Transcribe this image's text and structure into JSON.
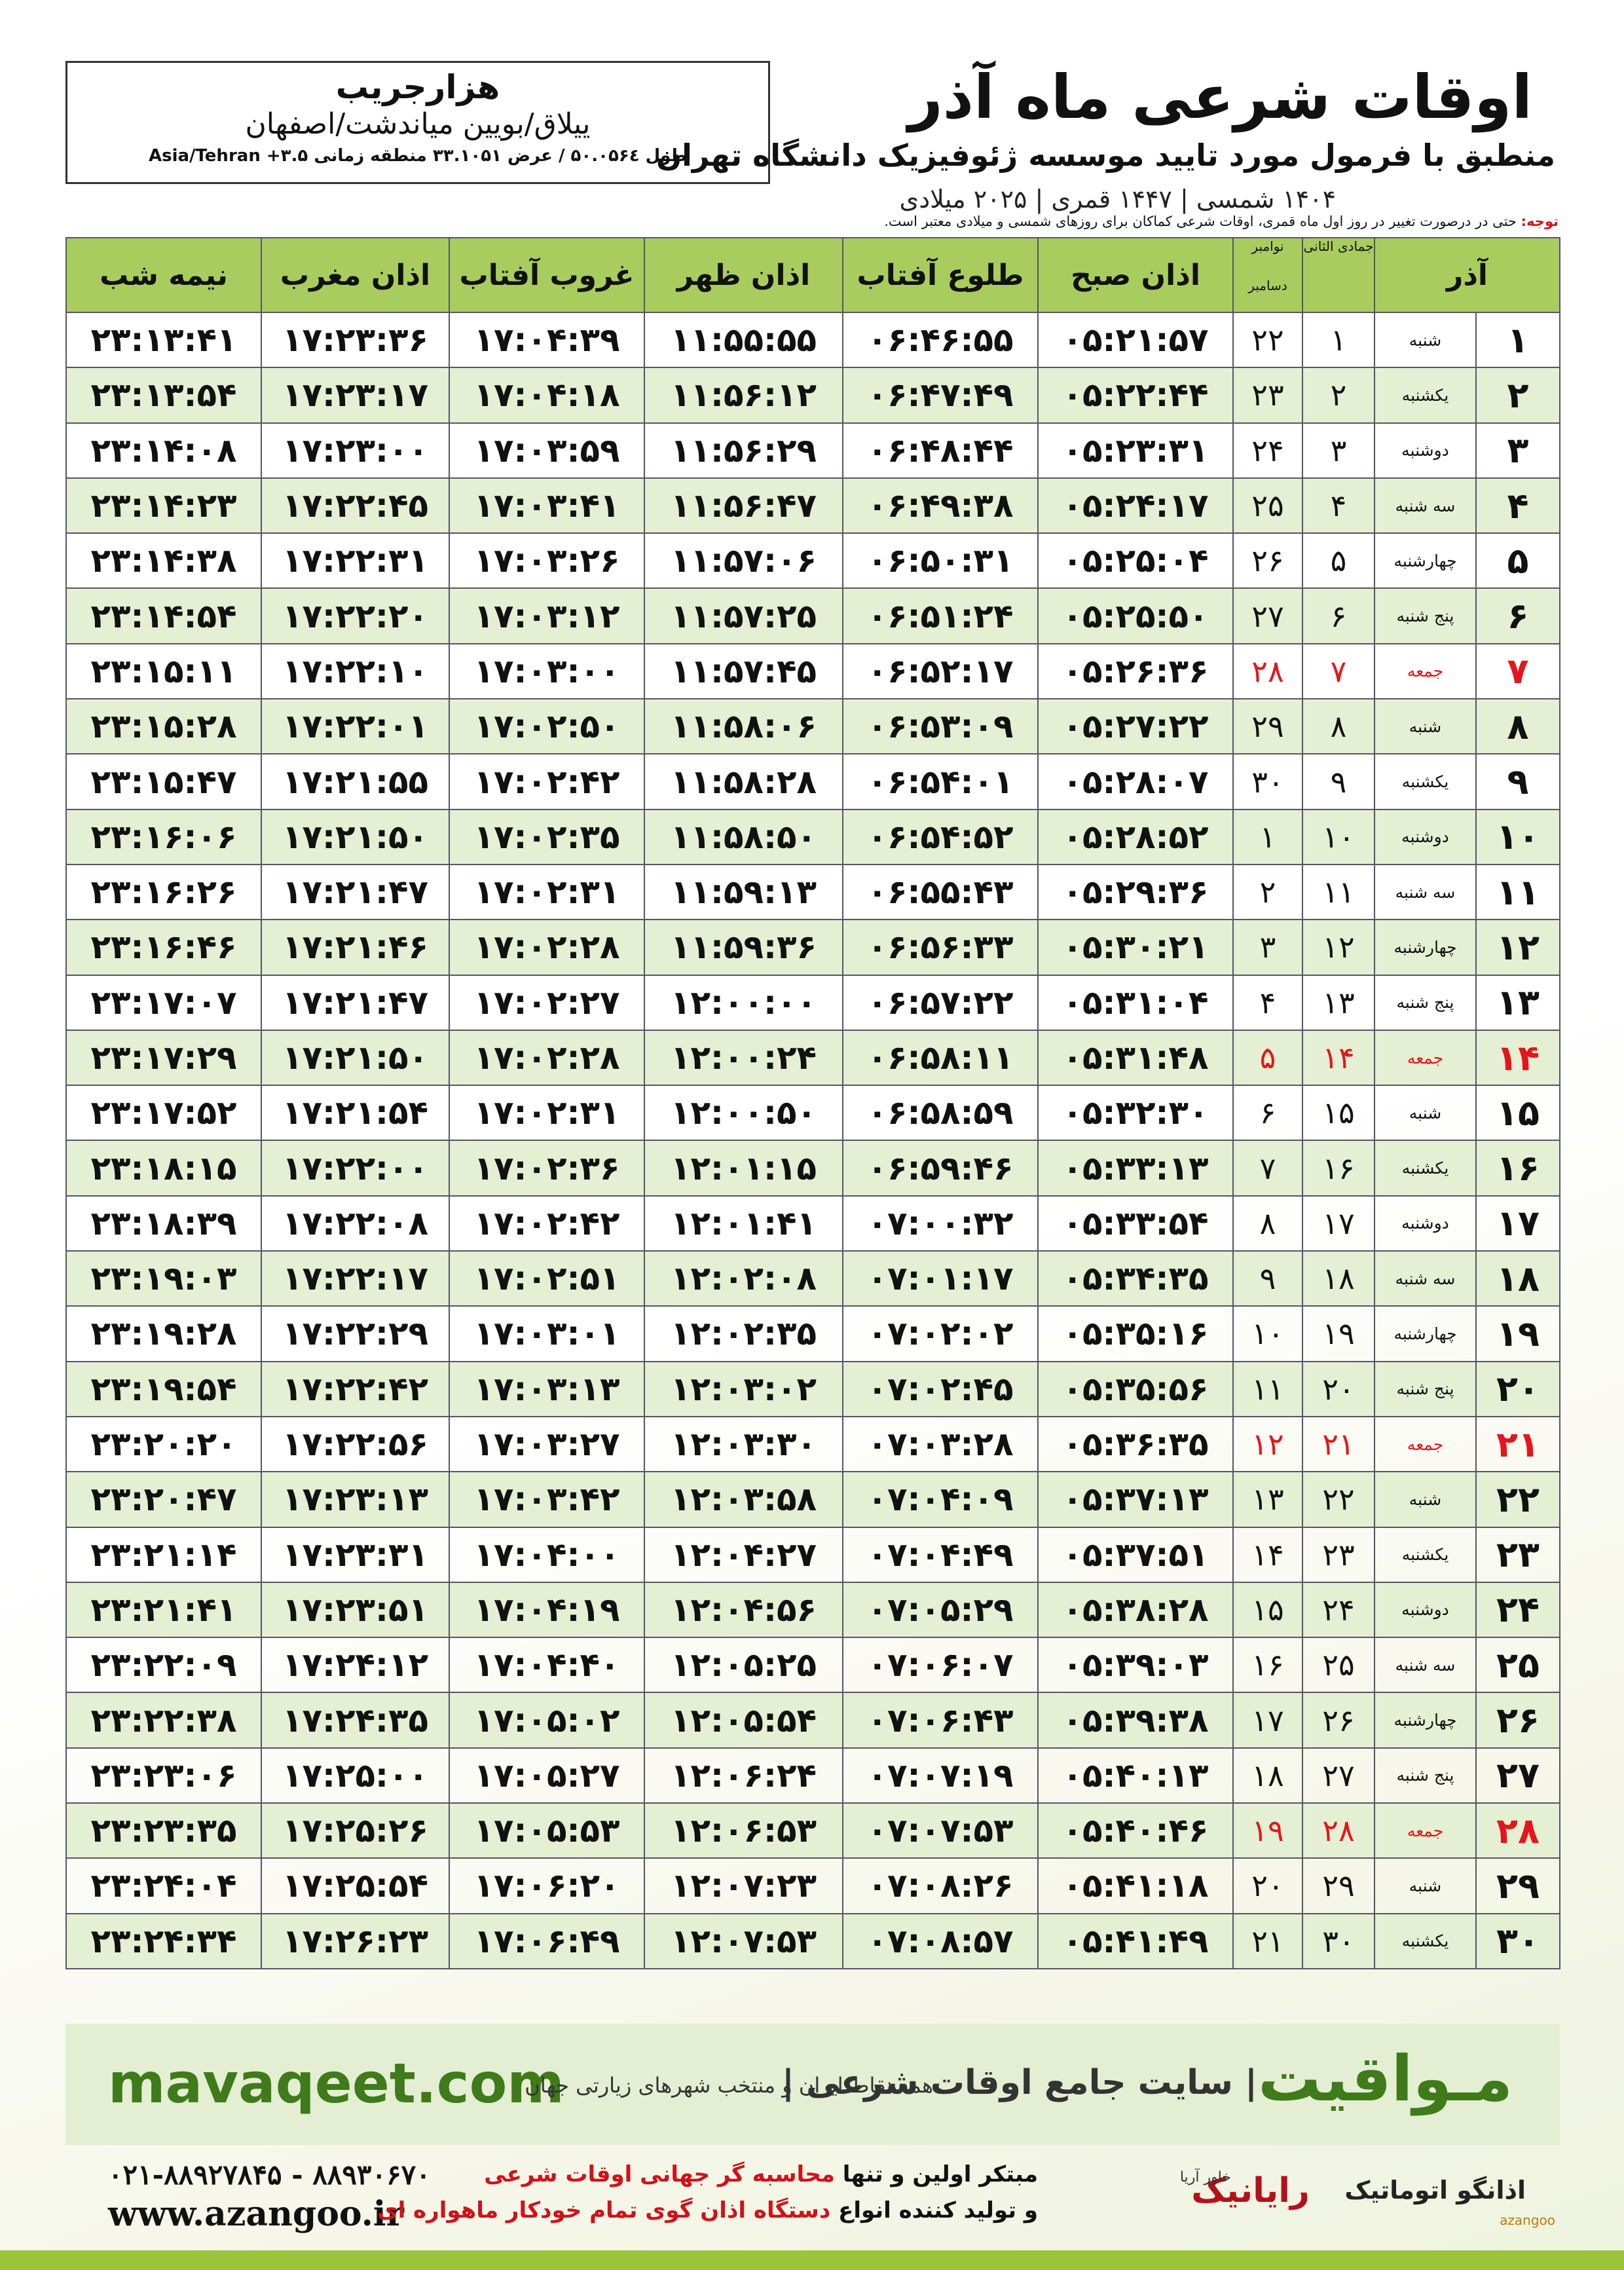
{
  "header": {
    "location_name": "هزارجریب",
    "location": "ییلاق/بویین میاندشت/اصفهان",
    "coords": "طول ۵۰.۰۵۶٤ / عرض ۳۳.۱۰۵۱ منطقه زمانی ۳.۵+ Asia/Tehran",
    "title": "اوقات شرعی ماه آذر",
    "subtitle": "منطبق با فرمول مورد تایید موسسه ژئوفیزیک دانشگاه تهران",
    "dates": "۱۴۰۴ شمسی | ۱۴۴۷ قمری | ۲۰۲۵ میلادی",
    "note_label": "توجه:",
    "note": "حتی در درصورت تغییر در روز اول ماه قمری، اوقات شرعی کماکان برای روزهای شمسی و میلادی معتبر است."
  },
  "table": {
    "highlight_color": "#e3161b",
    "columns": [
      "آذر",
      "جمادی الثانی",
      "نوامبر",
      "دسامبر",
      "اذان صبح",
      "طلوع آفتاب",
      "اذان ظهر",
      "غروب آفتاب",
      "اذان مغرب",
      "نیمه شب"
    ],
    "rows": [
      {
        "cells": [
          "۱",
          "شنبه",
          "۱",
          "۲۲",
          "۰۵:۲۱:۵۷",
          "۰۶:۴۶:۵۵",
          "۱۱:۵۵:۵۵",
          "۱۷:۰۴:۳۹",
          "۱۷:۲۳:۳۶",
          "۲۳:۱۳:۴۱"
        ]
      },
      {
        "cells": [
          "۲",
          "یکشنبه",
          "۲",
          "۲۳",
          "۰۵:۲۲:۴۴",
          "۰۶:۴۷:۴۹",
          "۱۱:۵۶:۱۲",
          "۱۷:۰۴:۱۸",
          "۱۷:۲۳:۱۷",
          "۲۳:۱۳:۵۴"
        ]
      },
      {
        "cells": [
          "۳",
          "دوشنبه",
          "۳",
          "۲۴",
          "۰۵:۲۳:۳۱",
          "۰۶:۴۸:۴۴",
          "۱۱:۵۶:۲۹",
          "۱۷:۰۳:۵۹",
          "۱۷:۲۳:۰۰",
          "۲۳:۱۴:۰۸"
        ]
      },
      {
        "cells": [
          "۴",
          "سه شنبه",
          "۴",
          "۲۵",
          "۰۵:۲۴:۱۷",
          "۰۶:۴۹:۳۸",
          "۱۱:۵۶:۴۷",
          "۱۷:۰۳:۴۱",
          "۱۷:۲۲:۴۵",
          "۲۳:۱۴:۲۳"
        ]
      },
      {
        "cells": [
          "۵",
          "چهارشنبه",
          "۵",
          "۲۶",
          "۰۵:۲۵:۰۴",
          "۰۶:۵۰:۳۱",
          "۱۱:۵۷:۰۶",
          "۱۷:۰۳:۲۶",
          "۱۷:۲۲:۳۱",
          "۲۳:۱۴:۳۸"
        ]
      },
      {
        "cells": [
          "۶",
          "پنج شنبه",
          "۶",
          "۲۷",
          "۰۵:۲۵:۵۰",
          "۰۶:۵۱:۲۴",
          "۱۱:۵۷:۲۵",
          "۱۷:۰۳:۱۲",
          "۱۷:۲۲:۲۰",
          "۲۳:۱۴:۵۴"
        ]
      },
      {
        "cells": [
          "۷",
          "جمعه",
          "۷",
          "۲۸",
          "۰۵:۲۶:۳۶",
          "۰۶:۵۲:۱۷",
          "۱۱:۵۷:۴۵",
          "۱۷:۰۳:۰۰",
          "۱۷:۲۲:۱۰",
          "۲۳:۱۵:۱۱"
        ],
        "holiday": true
      },
      {
        "cells": [
          "۸",
          "شنبه",
          "۸",
          "۲۹",
          "۰۵:۲۷:۲۲",
          "۰۶:۵۳:۰۹",
          "۱۱:۵۸:۰۶",
          "۱۷:۰۲:۵۰",
          "۱۷:۲۲:۰۱",
          "۲۳:۱۵:۲۸"
        ]
      },
      {
        "cells": [
          "۹",
          "یکشنبه",
          "۹",
          "۳۰",
          "۰۵:۲۸:۰۷",
          "۰۶:۵۴:۰۱",
          "۱۱:۵۸:۲۸",
          "۱۷:۰۲:۴۲",
          "۱۷:۲۱:۵۵",
          "۲۳:۱۵:۴۷"
        ]
      },
      {
        "cells": [
          "۱۰",
          "دوشنبه",
          "۱۰",
          "۱",
          "۰۵:۲۸:۵۲",
          "۰۶:۵۴:۵۲",
          "۱۱:۵۸:۵۰",
          "۱۷:۰۲:۳۵",
          "۱۷:۲۱:۵۰",
          "۲۳:۱۶:۰۶"
        ]
      },
      {
        "cells": [
          "۱۱",
          "سه شنبه",
          "۱۱",
          "۲",
          "۰۵:۲۹:۳۶",
          "۰۶:۵۵:۴۳",
          "۱۱:۵۹:۱۳",
          "۱۷:۰۲:۳۱",
          "۱۷:۲۱:۴۷",
          "۲۳:۱۶:۲۶"
        ]
      },
      {
        "cells": [
          "۱۲",
          "چهارشنبه",
          "۱۲",
          "۳",
          "۰۵:۳۰:۲۱",
          "۰۶:۵۶:۳۳",
          "۱۱:۵۹:۳۶",
          "۱۷:۰۲:۲۸",
          "۱۷:۲۱:۴۶",
          "۲۳:۱۶:۴۶"
        ]
      },
      {
        "cells": [
          "۱۳",
          "پنج شنبه",
          "۱۳",
          "۴",
          "۰۵:۳۱:۰۴",
          "۰۶:۵۷:۲۲",
          "۱۲:۰۰:۰۰",
          "۱۷:۰۲:۲۷",
          "۱۷:۲۱:۴۷",
          "۲۳:۱۷:۰۷"
        ]
      },
      {
        "cells": [
          "۱۴",
          "جمعه",
          "۱۴",
          "۵",
          "۰۵:۳۱:۴۸",
          "۰۶:۵۸:۱۱",
          "۱۲:۰۰:۲۴",
          "۱۷:۰۲:۲۸",
          "۱۷:۲۱:۵۰",
          "۲۳:۱۷:۲۹"
        ],
        "holiday": true
      },
      {
        "cells": [
          "۱۵",
          "شنبه",
          "۱۵",
          "۶",
          "۰۵:۳۲:۳۰",
          "۰۶:۵۸:۵۹",
          "۱۲:۰۰:۵۰",
          "۱۷:۰۲:۳۱",
          "۱۷:۲۱:۵۴",
          "۲۳:۱۷:۵۲"
        ]
      },
      {
        "cells": [
          "۱۶",
          "یکشنبه",
          "۱۶",
          "۷",
          "۰۵:۳۳:۱۳",
          "۰۶:۵۹:۴۶",
          "۱۲:۰۱:۱۵",
          "۱۷:۰۲:۳۶",
          "۱۷:۲۲:۰۰",
          "۲۳:۱۸:۱۵"
        ]
      },
      {
        "cells": [
          "۱۷",
          "دوشنبه",
          "۱۷",
          "۸",
          "۰۵:۳۳:۵۴",
          "۰۷:۰۰:۳۲",
          "۱۲:۰۱:۴۱",
          "۱۷:۰۲:۴۲",
          "۱۷:۲۲:۰۸",
          "۲۳:۱۸:۳۹"
        ]
      },
      {
        "cells": [
          "۱۸",
          "سه شنبه",
          "۱۸",
          "۹",
          "۰۵:۳۴:۳۵",
          "۰۷:۰۱:۱۷",
          "۱۲:۰۲:۰۸",
          "۱۷:۰۲:۵۱",
          "۱۷:۲۲:۱۷",
          "۲۳:۱۹:۰۳"
        ]
      },
      {
        "cells": [
          "۱۹",
          "چهارشنبه",
          "۱۹",
          "۱۰",
          "۰۵:۳۵:۱۶",
          "۰۷:۰۲:۰۲",
          "۱۲:۰۲:۳۵",
          "۱۷:۰۳:۰۱",
          "۱۷:۲۲:۲۹",
          "۲۳:۱۹:۲۸"
        ]
      },
      {
        "cells": [
          "۲۰",
          "پنج شنبه",
          "۲۰",
          "۱۱",
          "۰۵:۳۵:۵۶",
          "۰۷:۰۲:۴۵",
          "۱۲:۰۳:۰۲",
          "۱۷:۰۳:۱۳",
          "۱۷:۲۲:۴۲",
          "۲۳:۱۹:۵۴"
        ]
      },
      {
        "cells": [
          "۲۱",
          "جمعه",
          "۲۱",
          "۱۲",
          "۰۵:۳۶:۳۵",
          "۰۷:۰۳:۲۸",
          "۱۲:۰۳:۳۰",
          "۱۷:۰۳:۲۷",
          "۱۷:۲۲:۵۶",
          "۲۳:۲۰:۲۰"
        ],
        "holiday": true
      },
      {
        "cells": [
          "۲۲",
          "شنبه",
          "۲۲",
          "۱۳",
          "۰۵:۳۷:۱۳",
          "۰۷:۰۴:۰۹",
          "۱۲:۰۳:۵۸",
          "۱۷:۰۳:۴۲",
          "۱۷:۲۳:۱۳",
          "۲۳:۲۰:۴۷"
        ]
      },
      {
        "cells": [
          "۲۳",
          "یکشنبه",
          "۲۳",
          "۱۴",
          "۰۵:۳۷:۵۱",
          "۰۷:۰۴:۴۹",
          "۱۲:۰۴:۲۷",
          "۱۷:۰۴:۰۰",
          "۱۷:۲۳:۳۱",
          "۲۳:۲۱:۱۴"
        ]
      },
      {
        "cells": [
          "۲۴",
          "دوشنبه",
          "۲۴",
          "۱۵",
          "۰۵:۳۸:۲۸",
          "۰۷:۰۵:۲۹",
          "۱۲:۰۴:۵۶",
          "۱۷:۰۴:۱۹",
          "۱۷:۲۳:۵۱",
          "۲۳:۲۱:۴۱"
        ]
      },
      {
        "cells": [
          "۲۵",
          "سه شنبه",
          "۲۵",
          "۱۶",
          "۰۵:۳۹:۰۳",
          "۰۷:۰۶:۰۷",
          "۱۲:۰۵:۲۵",
          "۱۷:۰۴:۴۰",
          "۱۷:۲۴:۱۲",
          "۲۳:۲۲:۰۹"
        ]
      },
      {
        "cells": [
          "۲۶",
          "چهارشنبه",
          "۲۶",
          "۱۷",
          "۰۵:۳۹:۳۸",
          "۰۷:۰۶:۴۳",
          "۱۲:۰۵:۵۴",
          "۱۷:۰۵:۰۲",
          "۱۷:۲۴:۳۵",
          "۲۳:۲۲:۳۸"
        ]
      },
      {
        "cells": [
          "۲۷",
          "پنج شنبه",
          "۲۷",
          "۱۸",
          "۰۵:۴۰:۱۳",
          "۰۷:۰۷:۱۹",
          "۱۲:۰۶:۲۴",
          "۱۷:۰۵:۲۷",
          "۱۷:۲۵:۰۰",
          "۲۳:۲۳:۰۶"
        ]
      },
      {
        "cells": [
          "۲۸",
          "جمعه",
          "۲۸",
          "۱۹",
          "۰۵:۴۰:۴۶",
          "۰۷:۰۷:۵۳",
          "۱۲:۰۶:۵۳",
          "۱۷:۰۵:۵۳",
          "۱۷:۲۵:۲۶",
          "۲۳:۲۳:۳۵"
        ],
        "holiday": true
      },
      {
        "cells": [
          "۲۹",
          "شنبه",
          "۲۹",
          "۲۰",
          "۰۵:۴۱:۱۸",
          "۰۷:۰۸:۲۶",
          "۱۲:۰۷:۲۳",
          "۱۷:۰۶:۲۰",
          "۱۷:۲۵:۵۴",
          "۲۳:۲۴:۰۴"
        ]
      },
      {
        "cells": [
          "۳۰",
          "یکشنبه",
          "۳۰",
          "۲۱",
          "۰۵:۴۱:۴۹",
          "۰۷:۰۸:۵۷",
          "۱۲:۰۷:۵۳",
          "۱۷:۰۶:۴۹",
          "۱۷:۲۶:۲۳",
          "۲۳:۲۴:۳۴"
        ]
      }
    ]
  },
  "footer": {
    "brand": "مـواقیت",
    "slogan": "| سایت جامع اوقات شرعی |",
    "slogan_sub": "همه نقاط ایران و منتخب شهرهای زیارتی جهان",
    "site": "mavaqeet.com",
    "phone": "۰۲۱-۸۸۹۲۷۸۴۵ - ۸۸۹۳۰۶۷۰",
    "url": "www.azangoo.ir",
    "line1_a": "مبتکر اولین و تنها ",
    "line1_b": "محاسبه گر جهانی اوقات شرعی",
    "line2_a": "و تولید کننده انواع ",
    "line2_b": "دستگاه اذان گوی تمام خودکار ماهواره ای",
    "logo1": "رایانیک",
    "logo1_sub": "خاور آریا",
    "logo2": "اذانگو اتوماتیک",
    "logo2_sub": "azangoo"
  }
}
